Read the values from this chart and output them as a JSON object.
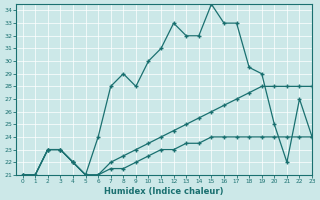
{
  "xlabel": "Humidex (Indice chaleur)",
  "xlim": [
    -0.5,
    23
  ],
  "ylim": [
    21,
    34.5
  ],
  "xticks": [
    0,
    1,
    2,
    3,
    4,
    5,
    6,
    7,
    8,
    9,
    10,
    11,
    12,
    13,
    14,
    15,
    16,
    17,
    18,
    19,
    20,
    21,
    22,
    23
  ],
  "yticks": [
    21,
    22,
    23,
    24,
    25,
    26,
    27,
    28,
    29,
    30,
    31,
    32,
    33,
    34
  ],
  "bg_color": "#cce8e8",
  "line_color": "#1a7070",
  "line1_x": [
    0,
    1,
    2,
    3,
    4,
    5,
    6,
    7,
    8,
    9,
    10,
    11,
    12,
    13,
    14,
    15,
    16,
    17,
    18,
    19,
    20,
    21,
    22,
    23
  ],
  "line1_y": [
    21,
    21,
    23,
    23,
    22,
    21,
    21,
    21.5,
    21.5,
    22,
    22.5,
    23,
    23,
    23.5,
    23.5,
    24,
    24,
    24,
    24,
    24,
    24,
    24,
    24,
    24
  ],
  "line2_x": [
    0,
    1,
    2,
    3,
    4,
    5,
    6,
    7,
    8,
    9,
    10,
    11,
    12,
    13,
    14,
    15,
    16,
    17,
    18,
    19,
    20,
    21,
    22,
    23
  ],
  "line2_y": [
    21,
    21,
    23,
    23,
    22,
    21,
    21,
    22,
    22.5,
    23,
    23.5,
    24,
    24.5,
    25,
    25.5,
    26,
    26.5,
    27,
    27.5,
    28,
    28,
    28,
    28,
    28
  ],
  "line3_x": [
    0,
    1,
    2,
    3,
    4,
    5,
    6,
    7,
    8,
    9,
    10,
    11,
    12,
    13,
    14,
    15,
    16,
    17,
    18,
    19,
    20,
    21,
    22,
    23
  ],
  "line3_y": [
    21,
    21,
    23,
    23,
    22,
    21,
    24,
    28,
    29,
    28,
    30,
    31,
    33,
    32,
    32,
    34.5,
    33,
    33,
    29.5,
    29,
    25,
    22,
    27,
    24
  ]
}
